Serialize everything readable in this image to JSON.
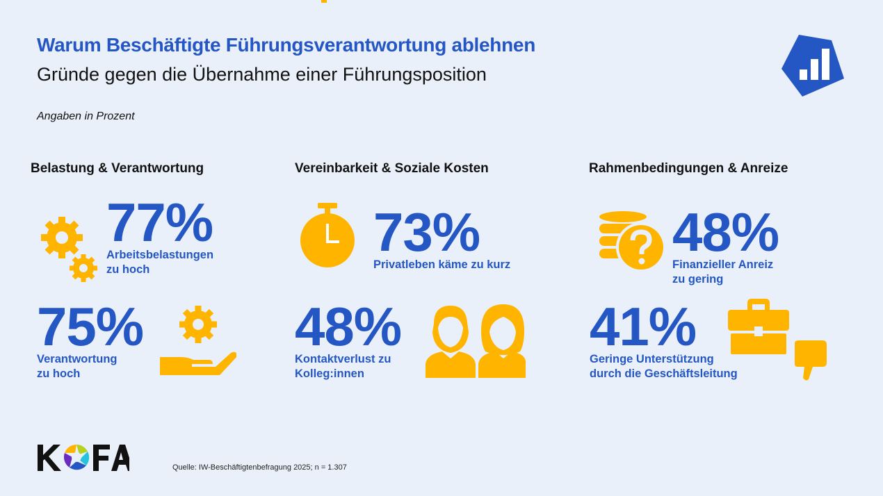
{
  "header": {
    "title": "Warum Beschäftigte Führungsverantwortung ablehnen",
    "subtitle": "Gründe gegen die Übernahme einer Führungsposition",
    "note": "Angaben in Prozent"
  },
  "colors": {
    "accent": "#2456c4",
    "icon": "#ffb400",
    "background": "#e9f0fa"
  },
  "sections": [
    {
      "title": "Belastung & Verantwortung",
      "items": [
        {
          "value": "77%",
          "label1": "Arbeitsbelastungen",
          "label2": "zu hoch",
          "icon": "gears-icon"
        },
        {
          "value": "75%",
          "label1": "Verantwortung",
          "label2": "zu hoch",
          "icon": "hand-gear-icon"
        }
      ]
    },
    {
      "title": "Vereinbarkeit & Soziale Kosten",
      "items": [
        {
          "value": "73%",
          "label1": "Privatleben käme zu kurz",
          "icon": "stopwatch-icon"
        },
        {
          "value": "48%",
          "label1": "Kontaktverlust zu",
          "label2": "Kolleg:innen",
          "icon": "people-icon"
        }
      ]
    },
    {
      "title": "Rahmenbedingungen & Anreize",
      "items": [
        {
          "value": "48%",
          "label1": "Finanzieller Anreiz",
          "label2": "zu gering",
          "icon": "coins-question-icon"
        },
        {
          "value": "41%",
          "label1": "Geringe Unterstützung",
          "label2": "durch die Geschäftsleitung",
          "icon": "briefcase-thumbs-down-icon"
        }
      ]
    }
  ],
  "footer": {
    "logo": "KOFA",
    "source": "Quelle:  IW-Beschäftigtenbefragung 2025; n = 1.307"
  }
}
